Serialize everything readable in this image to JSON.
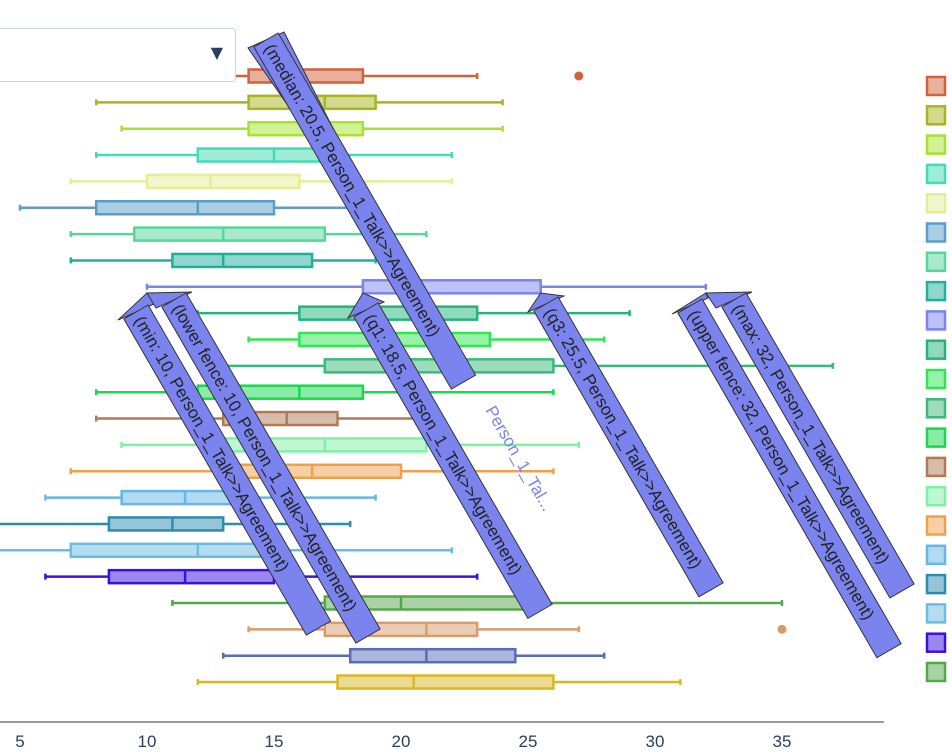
{
  "dropdown": {
    "value": "",
    "icon": "triangle-down-icon"
  },
  "chart_data": {
    "type": "box",
    "orientation": "horizontal",
    "x_range": [
      4,
      39
    ],
    "x_ticks": [
      5,
      10,
      15,
      20,
      25,
      30,
      35
    ],
    "hovered_series": "Person_1_Talk->Agreement",
    "series_label_truncated": "Person_1_Tal...",
    "hover_labels": [
      "(min: 10, Person_1_Talk>>Agreement)",
      "(lower fence: 10, Person_1_Talk>>Agreement)",
      "(q1: 18.5, Person_1_Talk>>Agreement)",
      "(median: 20.5, Person_1_Talk>>Agreement)",
      "(q3: 25.5, Person_1_Talk>>Agreement)",
      "(upper fence: 32, Person_1_Talk>>Agreement)",
      "(max: 32, Person_1_Talk>>Agreement)"
    ],
    "series": [
      {
        "lf": 10,
        "q1": 14,
        "med": 16,
        "q3": 18.5,
        "uf": 23,
        "out": [
          27
        ],
        "color": "#d2613c"
      },
      {
        "lf": 8,
        "q1": 14,
        "med": 17,
        "q3": 19,
        "uf": 24,
        "out": [],
        "color": "#a8b420"
      },
      {
        "lf": 9,
        "q1": 14,
        "med": 17,
        "q3": 18.5,
        "uf": 24,
        "out": [],
        "color": "#a6e22e"
      },
      {
        "lf": 8,
        "q1": 12,
        "med": 15,
        "q3": 17,
        "uf": 22,
        "out": [],
        "color": "#40dcb4"
      },
      {
        "lf": 7,
        "q1": 10,
        "med": 12.5,
        "q3": 16,
        "uf": 22,
        "out": [],
        "color": "#e3ee95"
      },
      {
        "lf": 5,
        "q1": 8,
        "med": 12,
        "q3": 15,
        "uf": 18,
        "out": [],
        "color": "#5a9ec8"
      },
      {
        "lf": 7,
        "q1": 9.5,
        "med": 13,
        "q3": 17,
        "uf": 21,
        "out": [],
        "color": "#55d69a"
      },
      {
        "lf": 7,
        "q1": 11,
        "med": 13,
        "q3": 16.5,
        "uf": 19,
        "out": [],
        "color": "#20b09a"
      },
      {
        "lf": 10,
        "q1": 18.5,
        "med": 20.5,
        "q3": 25.5,
        "uf": 32,
        "out": [],
        "color": "#7b84ee"
      },
      {
        "lf": 12,
        "q1": 16,
        "med": 19,
        "q3": 23,
        "uf": 29,
        "out": [],
        "color": "#23b47a"
      },
      {
        "lf": 14,
        "q1": 16,
        "med": 19,
        "q3": 23.5,
        "uf": 28,
        "out": [],
        "color": "#2ee64f"
      },
      {
        "lf": 12,
        "q1": 17,
        "med": 20,
        "q3": 26,
        "uf": 37,
        "out": [],
        "color": "#3cb87c"
      },
      {
        "lf": 8,
        "q1": 12,
        "med": 16,
        "q3": 18.5,
        "uf": 26,
        "out": [],
        "color": "#18d850"
      },
      {
        "lf": 8,
        "q1": 13,
        "med": 15.5,
        "q3": 17.5,
        "uf": 21,
        "out": [],
        "color": "#b07a56"
      },
      {
        "lf": 9,
        "q1": 13,
        "med": 17,
        "q3": 21,
        "uf": 27,
        "out": [],
        "color": "#7ff0a6"
      },
      {
        "lf": 7,
        "q1": 13,
        "med": 16.5,
        "q3": 20,
        "uf": 26,
        "out": [],
        "color": "#f0a04c"
      },
      {
        "lf": 6,
        "q1": 9,
        "med": 11.5,
        "q3": 14,
        "uf": 19,
        "out": [],
        "color": "#66b6e8"
      },
      {
        "lf": 3,
        "q1": 8.5,
        "med": 11,
        "q3": 13,
        "uf": 18,
        "out": [],
        "color": "#2c8cb0"
      },
      {
        "lf": 3,
        "q1": 7,
        "med": 12,
        "q3": 15,
        "uf": 22,
        "out": [],
        "color": "#6cbce0"
      },
      {
        "lf": 6,
        "q1": 8.5,
        "med": 11.5,
        "q3": 15,
        "uf": 23,
        "out": [],
        "color": "#3a10e0"
      },
      {
        "lf": 11,
        "q1": 17,
        "med": 20,
        "q3": 25,
        "uf": 35,
        "out": [],
        "color": "#54a84c"
      },
      {
        "lf": 14,
        "q1": 17,
        "med": 21,
        "q3": 23,
        "uf": 27,
        "out": [
          35
        ],
        "color": "#d89c6c"
      },
      {
        "lf": 13,
        "q1": 18,
        "med": 21,
        "q3": 24.5,
        "uf": 28,
        "out": [],
        "color": "#5a6cb8"
      },
      {
        "lf": 12,
        "q1": 17.5,
        "med": 20.5,
        "q3": 26,
        "uf": 31,
        "out": [],
        "color": "#d8b820"
      }
    ],
    "legend_colors": [
      "#d2613c",
      "#a8b420",
      "#a6e22e",
      "#40dcb4",
      "#e3ee95",
      "#5a9ec8",
      "#55d69a",
      "#20b09a",
      "#7b84ee",
      "#23b47a",
      "#2ee64f",
      "#3cb87c",
      "#18d850",
      "#b07a56",
      "#7ff0a6",
      "#f0a04c",
      "#66b6e8",
      "#2c8cb0",
      "#6cbce0",
      "#3a10e0",
      "#54a84c"
    ],
    "hover_color": "#7b84ee"
  }
}
